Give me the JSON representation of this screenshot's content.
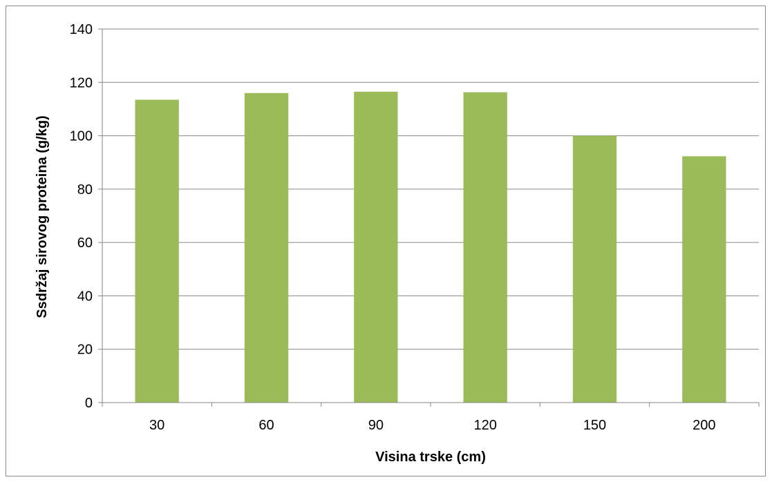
{
  "chart_data": {
    "type": "bar",
    "categories": [
      "30",
      "60",
      "90",
      "120",
      "150",
      "200"
    ],
    "values": [
      113.5,
      116,
      116.5,
      116.3,
      100,
      92.3
    ],
    "title": "",
    "xlabel": "Visina trske (cm)",
    "ylabel": "Ssdržaj sirovog proteina (g/kg)",
    "ylim": [
      0,
      140
    ],
    "yticks": [
      0,
      20,
      40,
      60,
      80,
      100,
      120,
      140
    ],
    "grid": true,
    "legend": "none",
    "bar_color": "#9BBB59",
    "grid_color": "#868686"
  }
}
